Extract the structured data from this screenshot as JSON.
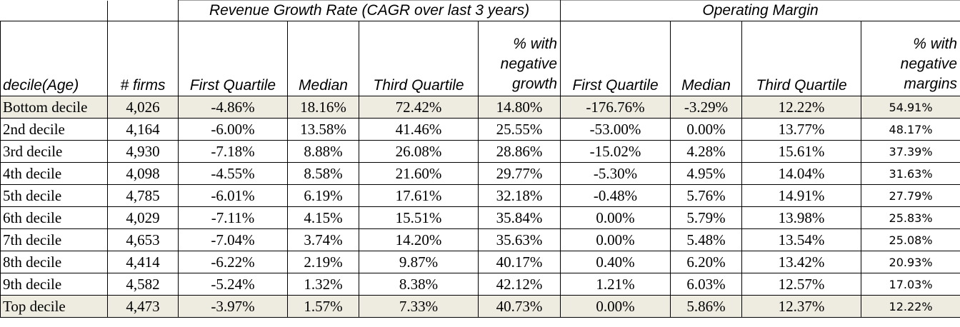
{
  "groups": {
    "revenue": "Revenue Growth Rate (CAGR over last 3 years)",
    "margin": "Operating Margin"
  },
  "headers": {
    "decile": "decile(Age)",
    "firms": "# firms",
    "rev_q1": "First Quartile",
    "rev_median": "Median",
    "rev_q3": "Third Quartile",
    "rev_neg_line1": "% with",
    "rev_neg_line2": "negative",
    "rev_neg_line3": "growth",
    "om_q1": "First Quartile",
    "om_median": "Median",
    "om_q3": "Third Quartile",
    "om_neg_line1": "% with",
    "om_neg_line2": "negative",
    "om_neg_line3": "margins"
  },
  "rows": [
    [
      "Bottom decile",
      "4,026",
      "-4.86%",
      "18.16%",
      "72.42%",
      "14.80%",
      "-176.76%",
      "-3.29%",
      "12.22%",
      "54.91%"
    ],
    [
      "2nd decile",
      "4,164",
      "-6.00%",
      "13.58%",
      "41.46%",
      "25.55%",
      "-53.00%",
      "0.00%",
      "13.77%",
      "48.17%"
    ],
    [
      "3rd decile",
      "4,930",
      "-7.18%",
      "8.88%",
      "26.08%",
      "28.86%",
      "-15.02%",
      "4.28%",
      "15.61%",
      "37.39%"
    ],
    [
      "4th decile",
      "4,098",
      "-4.55%",
      "8.58%",
      "21.60%",
      "29.77%",
      "-5.30%",
      "4.95%",
      "14.04%",
      "31.63%"
    ],
    [
      "5th decile",
      "4,785",
      "-6.01%",
      "6.19%",
      "17.61%",
      "32.18%",
      "-0.48%",
      "5.76%",
      "14.91%",
      "27.79%"
    ],
    [
      "6th decile",
      "4,029",
      "-7.11%",
      "4.15%",
      "15.51%",
      "35.84%",
      "0.00%",
      "5.79%",
      "13.98%",
      "25.83%"
    ],
    [
      "7th decile",
      "4,653",
      "-7.04%",
      "3.74%",
      "14.20%",
      "35.63%",
      "0.00%",
      "5.48%",
      "13.54%",
      "25.08%"
    ],
    [
      "8th decile",
      "4,414",
      "-6.22%",
      "2.19%",
      "9.87%",
      "40.17%",
      "0.40%",
      "6.20%",
      "13.42%",
      "20.93%"
    ],
    [
      "9th decile",
      "4,582",
      "-5.24%",
      "1.32%",
      "8.38%",
      "42.12%",
      "1.21%",
      "6.03%",
      "12.57%",
      "17.03%"
    ],
    [
      "Top decile",
      "4,473",
      "-3.97%",
      "1.57%",
      "7.33%",
      "40.73%",
      "0.00%",
      "5.86%",
      "12.37%",
      "12.22%"
    ]
  ]
}
